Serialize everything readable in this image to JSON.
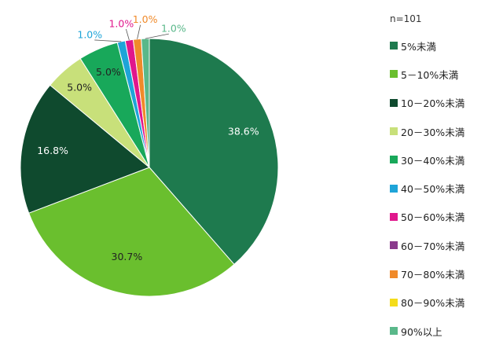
{
  "chart_data": {
    "type": "pie",
    "n_label": "n=101",
    "categories": [
      "5%未満",
      "5－10%未満",
      "10－20%未満",
      "20－30%未満",
      "30－40%未満",
      "40－50%未満",
      "50－60%未満",
      "60－70%未満",
      "70－80%未満",
      "80－90%未満",
      "90%以上"
    ],
    "values": [
      38.6,
      30.7,
      16.8,
      5.0,
      5.0,
      1.0,
      1.0,
      0,
      1.0,
      0,
      1.0
    ],
    "value_labels": [
      "38.6%",
      "30.7%",
      "16.8%",
      "5.0%",
      "5.0%",
      "1.0%",
      "1.0%",
      "",
      "1.0%",
      "",
      "1.0%"
    ],
    "colors": [
      "#1e7a4e",
      "#6abf2e",
      "#0f4a2e",
      "#c8e07a",
      "#18a85a",
      "#1ea4d8",
      "#e0178c",
      "#8a3a8c",
      "#f08a2a",
      "#f4dc1a",
      "#5ab88a"
    ],
    "start_angle_deg": 0,
    "direction": "clockwise",
    "legend_position": "right"
  }
}
